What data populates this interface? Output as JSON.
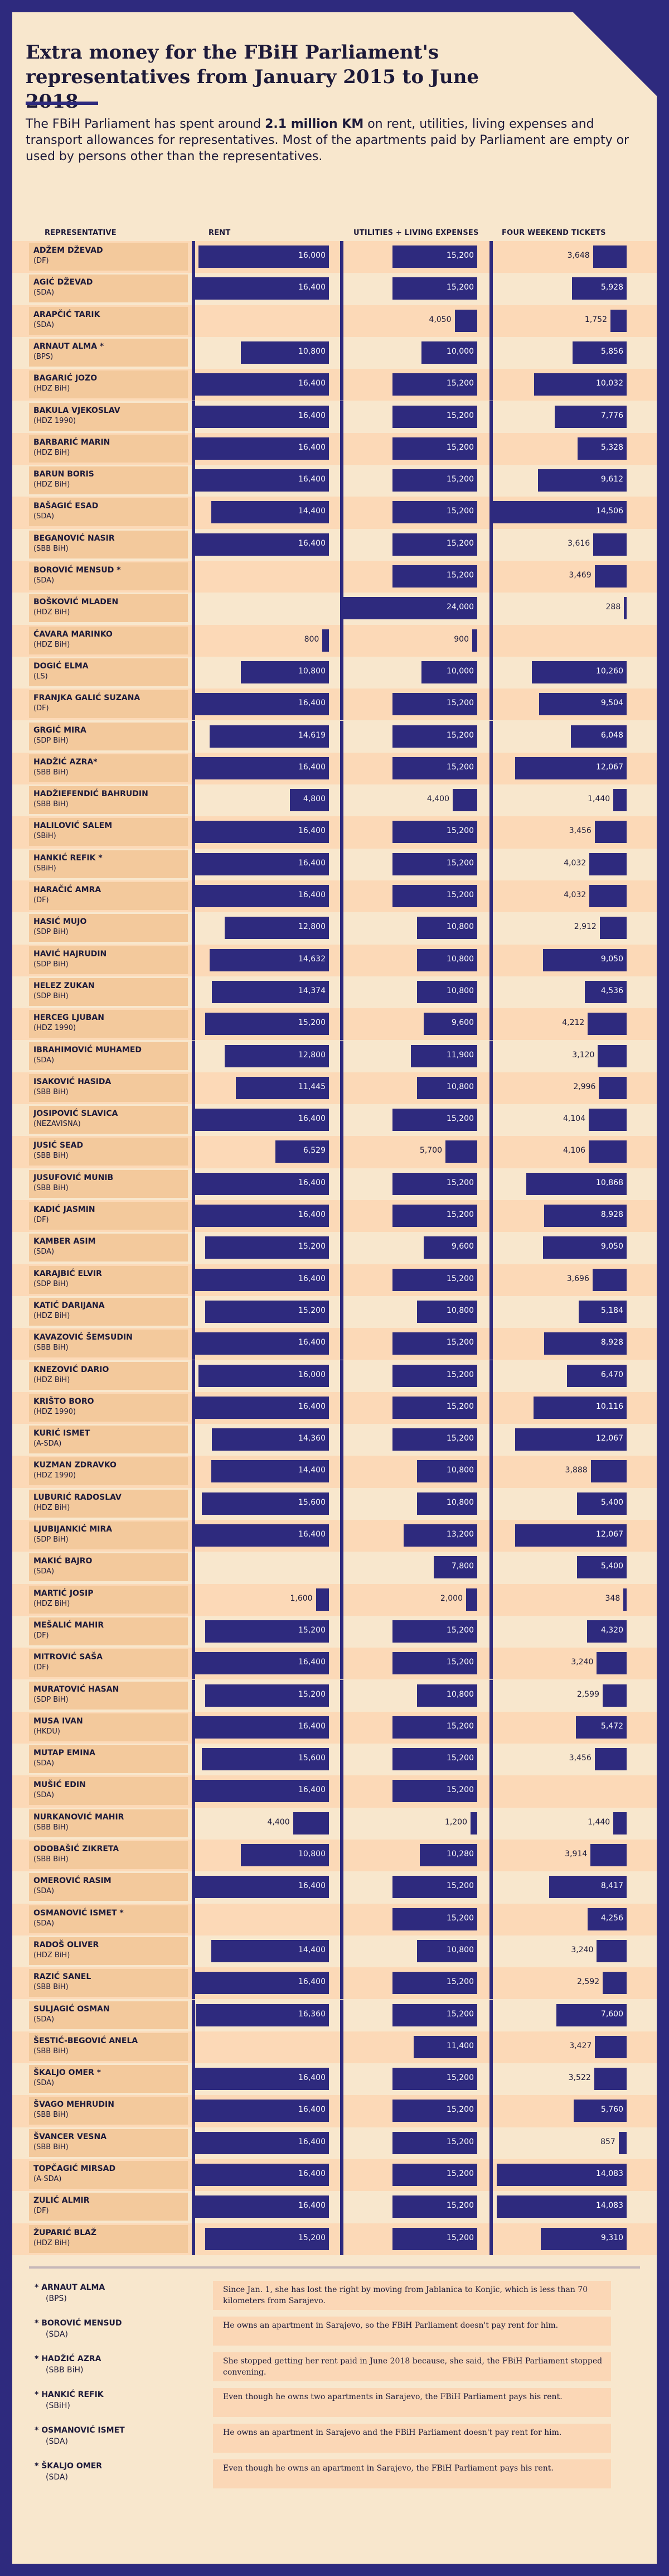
{
  "title": "Extra money for the FBiH Parliament's representatives from January 2015 to June 2018",
  "intro_before": "The FBiH Parliament has spent around ",
  "intro_bold": "2.1 million KM",
  "intro_after": " on rent, utilities, living expenses and transport allowances for representatives. Most of the apartments paid by Parliament are empty or used by persons other than the representatives.",
  "column_headers": {
    "representative": "REPRESENTATIVE",
    "rent": "RENT",
    "utilities": "UTILITIES + LIVING EXPENSES",
    "tickets": "FOUR WEEKEND TICKETS"
  },
  "colors": {
    "bar": "#2e2a7e",
    "background": "#f8e7cd",
    "band": "#fcd9b7",
    "name_cell": "#f3c99c"
  },
  "chart_data": {
    "type": "bar",
    "series_names": [
      "RENT",
      "UTILITIES + LIVING EXPENSES",
      "FOUR WEEKEND TICKETS"
    ],
    "rows": [
      {
        "name": "ADŽEM DŽEVAD",
        "party": "(DF)",
        "rent": "16,000",
        "util": "15,200",
        "tickets": "3,648"
      },
      {
        "name": "AGIĆ DŽEVAD",
        "party": "(SDA)",
        "rent": "16,400",
        "util": "15,200",
        "tickets": "5,928"
      },
      {
        "name": "ARAPČIĆ TARIK",
        "party": "(SDA)",
        "rent": "",
        "util": "4,050",
        "tickets": "1,752"
      },
      {
        "name": "ARNAUT ALMA *",
        "party": "(BPS)",
        "rent": "10,800",
        "util": "10,000",
        "tickets": "5,856"
      },
      {
        "name": "BAGARIĆ JOZO",
        "party": "(HDZ BiH)",
        "rent": "16,400",
        "util": "15,200",
        "tickets": "10,032"
      },
      {
        "name": "BAKULA VJEKOSLAV",
        "party": "(HDZ 1990)",
        "rent": "16,400",
        "util": "15,200",
        "tickets": "7,776"
      },
      {
        "name": "BARBARIĆ MARIN",
        "party": "(HDZ BiH)",
        "rent": "16,400",
        "util": "15,200",
        "tickets": "5,328"
      },
      {
        "name": "BARUN BORIS",
        "party": "(HDZ BiH)",
        "rent": "16,400",
        "util": "15,200",
        "tickets": "9,612"
      },
      {
        "name": "BAŠAGIĆ ESAD",
        "party": "(SDA)",
        "rent": "14,400",
        "util": "15,200",
        "tickets": "14,506"
      },
      {
        "name": "BEGANOVIĆ NASIR",
        "party": "(SBB BiH)",
        "rent": "16,400",
        "util": "15,200",
        "tickets": "3,616"
      },
      {
        "name": "BOROVIĆ MENSUD *",
        "party": "(SDA)",
        "rent": "",
        "util": "15,200",
        "tickets": "3,469"
      },
      {
        "name": "BOŠKOVIĆ MLADEN",
        "party": "(HDZ BiH)",
        "rent": "",
        "util": "24,000",
        "tickets": "288"
      },
      {
        "name": "ĆAVARA MARINKO",
        "party": "(HDZ BiH)",
        "rent": "800",
        "util": "900",
        "tickets": ""
      },
      {
        "name": "DOGIĆ ELMA",
        "party": "(LS)",
        "rent": "10,800",
        "util": "10,000",
        "tickets": "10,260"
      },
      {
        "name": "FRANJKA GALIĆ SUZANA",
        "party": "(DF)",
        "rent": "16,400",
        "util": "15,200",
        "tickets": "9,504"
      },
      {
        "name": "GRGIĆ MIRA",
        "party": "(SDP BiH)",
        "rent": "14,619",
        "util": "15,200",
        "tickets": "6,048"
      },
      {
        "name": "HADŽIĆ AZRA*",
        "party": "(SBB BiH)",
        "rent": "16,400",
        "util": "15,200",
        "tickets": "12,067"
      },
      {
        "name": "HADŽIEFENDIĆ BAHRUDIN",
        "party": "(SBB BiH)",
        "rent": "4,800",
        "util": "4,400",
        "tickets": "1,440"
      },
      {
        "name": "HALILOVIĆ SALEM",
        "party": "(SBiH)",
        "rent": "16,400",
        "util": "15,200",
        "tickets": "3,456"
      },
      {
        "name": "HANKIĆ REFIK *",
        "party": "(SBiH)",
        "rent": "16,400",
        "util": "15,200",
        "tickets": "4,032"
      },
      {
        "name": "HARAČIĆ AMRA",
        "party": "(DF)",
        "rent": "16,400",
        "util": "15,200",
        "tickets": "4,032"
      },
      {
        "name": "HASIĆ MUJO",
        "party": "(SDP BiH)",
        "rent": "12,800",
        "util": "10,800",
        "tickets": "2,912"
      },
      {
        "name": "HAVIĆ HAJRUDIN",
        "party": "(SDP BiH)",
        "rent": "14,632",
        "util": "10,800",
        "tickets": "9,050"
      },
      {
        "name": "HELEZ ZUKAN",
        "party": "(SDP BiH)",
        "rent": "14,374",
        "util": "10,800",
        "tickets": "4,536"
      },
      {
        "name": "HERCEG LJUBAN",
        "party": "(HDZ 1990)",
        "rent": "15,200",
        "util": "9,600",
        "tickets": "4,212"
      },
      {
        "name": "IBRAHIMOVIĆ MUHAMED",
        "party": "(SDA)",
        "rent": "12,800",
        "util": "11,900",
        "tickets": "3,120"
      },
      {
        "name": "ISAKOVIĆ HASIDA",
        "party": "(SBB BiH)",
        "rent": "11,445",
        "util": "10,800",
        "tickets": "2,996"
      },
      {
        "name": "JOSIPOVIĆ SLAVICA",
        "party": "(NEZAVISNA)",
        "rent": "16,400",
        "util": "15,200",
        "tickets": "4,104"
      },
      {
        "name": "JUSIĆ SEAD",
        "party": "(SBB BiH)",
        "rent": "6,529",
        "util": "5,700",
        "tickets": "4,106"
      },
      {
        "name": "JUSUFOVIĆ MUNIB",
        "party": "(SBB BiH)",
        "rent": "16,400",
        "util": "15,200",
        "tickets": "10,868"
      },
      {
        "name": "KADIĆ JASMIN",
        "party": "(DF)",
        "rent": "16,400",
        "util": "15,200",
        "tickets": "8,928"
      },
      {
        "name": "KAMBER ASIM",
        "party": "(SDA)",
        "rent": "15,200",
        "util": "9,600",
        "tickets": "9,050"
      },
      {
        "name": "KARAJBIĆ ELVIR",
        "party": "(SDP BiH)",
        "rent": "16,400",
        "util": "15,200",
        "tickets": "3,696"
      },
      {
        "name": "KATIĆ DARIJANA",
        "party": "(HDZ BiH)",
        "rent": "15,200",
        "util": "10,800",
        "tickets": "5,184"
      },
      {
        "name": "KAVAZOVIĆ ŠEMSUDIN",
        "party": "(SBB BiH)",
        "rent": "16,400",
        "util": "15,200",
        "tickets": "8,928"
      },
      {
        "name": "KNEZOVIĆ DARIO",
        "party": "(HDZ BiH)",
        "rent": "16,000",
        "util": "15,200",
        "tickets": "6,470"
      },
      {
        "name": "KRIŠTO BORO",
        "party": "(HDZ 1990)",
        "rent": "16,400",
        "util": "15,200",
        "tickets": "10,116"
      },
      {
        "name": "KURIĆ ISMET",
        "party": "(A-SDA)",
        "rent": "14,360",
        "util": "15,200",
        "tickets": "12,067"
      },
      {
        "name": "KUZMAN ZDRAVKO",
        "party": "(HDZ 1990)",
        "rent": "14,400",
        "util": "10,800",
        "tickets": "3,888"
      },
      {
        "name": "LUBURIĆ RADOSLAV",
        "party": "(HDZ BiH)",
        "rent": "15,600",
        "util": "10,800",
        "tickets": "5,400"
      },
      {
        "name": "LJUBIJANKIĆ MIRA",
        "party": "(SDP BiH)",
        "rent": "16,400",
        "util": "13,200",
        "tickets": "12,067"
      },
      {
        "name": "MAKIĆ BAJRO",
        "party": "(SDA)",
        "rent": "",
        "util": "7,800",
        "tickets": "5,400"
      },
      {
        "name": "MARTIĆ JOSIP",
        "party": "(HDZ BiH)",
        "rent": "1,600",
        "util": "2,000",
        "tickets": "348"
      },
      {
        "name": "MEŠALIĆ MAHIR",
        "party": "(DF)",
        "rent": "15,200",
        "util": "15,200",
        "tickets": "4,320"
      },
      {
        "name": "MITROVIĆ SAŠA",
        "party": "(DF)",
        "rent": "16,400",
        "util": "15,200",
        "tickets": "3,240"
      },
      {
        "name": "MURATOVIĆ HASAN",
        "party": "(SDP BiH)",
        "rent": "15,200",
        "util": "10,800",
        "tickets": "2,599"
      },
      {
        "name": "MUSA IVAN",
        "party": "(HKDU)",
        "rent": "16,400",
        "util": "15,200",
        "tickets": "5,472"
      },
      {
        "name": "MUTAP EMINA",
        "party": "(SDA)",
        "rent": "15,600",
        "util": "15,200",
        "tickets": "3,456"
      },
      {
        "name": "MUŠIĆ EDIN",
        "party": "(SDA)",
        "rent": "16,400",
        "util": "15,200",
        "tickets": ""
      },
      {
        "name": "NURKANOVIĆ MAHIR",
        "party": "(SBB BiH)",
        "rent": "4,400",
        "util": "1,200",
        "tickets": "1,440"
      },
      {
        "name": "ODOBAŠIĆ ZIKRETA",
        "party": "(SBB BiH)",
        "rent": "10,800",
        "util": "10,280",
        "tickets": "3,914"
      },
      {
        "name": "OMEROVIĆ RASIM",
        "party": "(SDA)",
        "rent": "16,400",
        "util": "15,200",
        "tickets": "8,417"
      },
      {
        "name": "OSMANOVIĆ ISMET *",
        "party": "(SDA)",
        "rent": "",
        "util": "15,200",
        "tickets": "4,256"
      },
      {
        "name": "RADOŠ OLIVER",
        "party": "(HDZ BiH)",
        "rent": "14,400",
        "util": "10,800",
        "tickets": "3,240"
      },
      {
        "name": "RAZIĆ SANEL",
        "party": "(SBB BiH)",
        "rent": "16,400",
        "util": "15,200",
        "tickets": "2,592"
      },
      {
        "name": "SULJAGIĆ OSMAN",
        "party": "(SDA)",
        "rent": "16,360",
        "util": "15,200",
        "tickets": "7,600"
      },
      {
        "name": "ŠESTIĆ-BEGOVIĆ ANELA",
        "party": "(SBB BiH)",
        "rent": "",
        "util": "11,400",
        "tickets": "3,427"
      },
      {
        "name": "ŠKALJO OMER *",
        "party": "(SDA)",
        "rent": "16,400",
        "util": "15,200",
        "tickets": "3,522"
      },
      {
        "name": "ŠVAGO MEHRUDIN",
        "party": "(SBB BiH)",
        "rent": "16,400",
        "util": "15,200",
        "tickets": "5,760"
      },
      {
        "name": "ŠVANCER VESNA",
        "party": "(SBB BiH)",
        "rent": "16,400",
        "util": "15,200",
        "tickets": "857"
      },
      {
        "name": "TOPČAGIĆ MIRSAD",
        "party": "(A-SDA)",
        "rent": "16,400",
        "util": "15,200",
        "tickets": "14,083"
      },
      {
        "name": "ZULIĆ ALMIR",
        "party": "(DF)",
        "rent": "16,400",
        "util": "15,200",
        "tickets": "14,083"
      },
      {
        "name": "ŽUPARIĆ BLAŽ",
        "party": "(HDZ BiH)",
        "rent": "15,200",
        "util": "15,200",
        "tickets": "9,310"
      }
    ]
  },
  "footnotes": [
    {
      "name": "* ARNAUT ALMA",
      "party": "(BPS)",
      "text": "Since Jan. 1, she has lost the right by moving from Jablanica to Konjic, which is less than 70 kilometers from Sarajevo."
    },
    {
      "name": "* BOROVIĆ MENSUD",
      "party": "(SDA)",
      "text": "He owns an apartment in Sarajevo, so the FBiH Parliament doesn't pay rent for him."
    },
    {
      "name": "* HADŽIĆ AZRA",
      "party": "(SBB BiH)",
      "text": "She stopped getting her rent paid in June 2018 because, she said, the FBiH Parliament stopped convening."
    },
    {
      "name": "* HANKIĆ REFIK",
      "party": "(SBiH)",
      "text": "Even though he owns two apartments in Sarajevo, the FBiH Parliament pays his rent."
    },
    {
      "name": "* OSMANOVIĆ ISMET",
      "party": "(SDA)",
      "text": "He owns an apartment in Sarajevo and the FBiH Parliament doesn't pay rent for him."
    },
    {
      "name": "* ŠKALJO OMER",
      "party": "(SDA)",
      "text": "Even though he owns an apartment in Sarajevo, the FBiH Parliament pays his rent."
    }
  ]
}
